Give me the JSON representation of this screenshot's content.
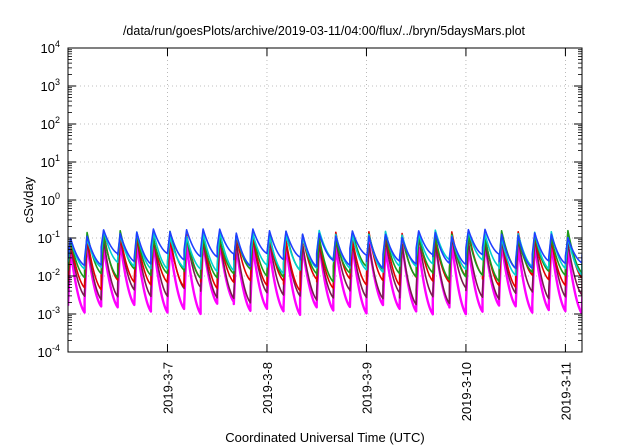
{
  "chart_data": {
    "type": "line",
    "title": "/data/run/goesPlots/archive/2019-03-11/04:00/flux/../bryn/5daysMars.plot",
    "xlabel": "Coordinated Universal Time (UTC)",
    "ylabel": "cSv/day",
    "y_scale": "log",
    "ylim": [
      0.0001,
      10000
    ],
    "y_ticks": [
      {
        "base": "10",
        "exp": "4",
        "value": 10000
      },
      {
        "base": "10",
        "exp": "3",
        "value": 1000
      },
      {
        "base": "10",
        "exp": "2",
        "value": 100
      },
      {
        "base": "10",
        "exp": "1",
        "value": 10
      },
      {
        "base": "10",
        "exp": "0",
        "value": 1
      },
      {
        "base": "10",
        "exp": "-1",
        "value": 0.1
      },
      {
        "base": "10",
        "exp": "-2",
        "value": 0.01
      },
      {
        "base": "10",
        "exp": "-3",
        "value": 0.001
      },
      {
        "base": "10",
        "exp": "-4",
        "value": 0.0001
      }
    ],
    "xlim": [
      "2019-03-06 00:00",
      "2019-03-11 04:00"
    ],
    "x_ticks": [
      {
        "label": "2019-3-7",
        "value": "2019-03-07"
      },
      {
        "label": "2019-3-8",
        "value": "2019-03-08"
      },
      {
        "label": "2019-3-9",
        "value": "2019-03-09"
      },
      {
        "label": "2019-3-10",
        "value": "2019-03-10"
      },
      {
        "label": "2019-3-11",
        "value": "2019-03-11"
      }
    ],
    "grid": true,
    "series_colors": [
      "#e00000",
      "#1a9a1a",
      "#1f3fff",
      "#ff00ff",
      "#00d0d0",
      "#7a1b4f"
    ],
    "pattern": {
      "period_hours": 4,
      "max_envelope": 0.12,
      "min_envelope": 0.001
    }
  }
}
